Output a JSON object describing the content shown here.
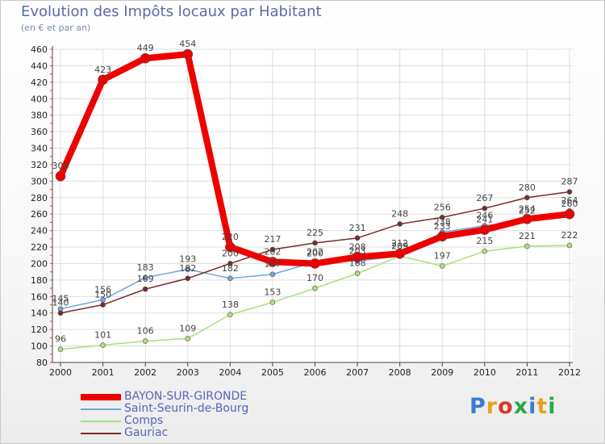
{
  "title": "Evolution des Impôts locaux par Habitant",
  "subtitle": "(en € et par an)",
  "logo": {
    "text": "Proxiti",
    "letter_colors": [
      "#3a7bd5",
      "#e8a020",
      "#d63a2a",
      "#2aa84a",
      "#3a7bd5",
      "#e8a020",
      "#2aa84a"
    ]
  },
  "chart_data": {
    "type": "line",
    "title": "Evolution des Impôts locaux par Habitant",
    "subtitle": "(en € et par an)",
    "xlabel": "",
    "ylabel": "",
    "ylim": [
      80,
      460
    ],
    "yticks": [
      80,
      100,
      120,
      140,
      160,
      180,
      200,
      220,
      240,
      260,
      280,
      300,
      320,
      340,
      360,
      380,
      400,
      420,
      440,
      460
    ],
    "categories": [
      "2000",
      "2001",
      "2002",
      "2003",
      "2004",
      "2005",
      "2006",
      "2007",
      "2008",
      "2009",
      "2010",
      "2011",
      "2012"
    ],
    "grid": true,
    "legend_position": "bottom-left",
    "series": [
      {
        "name": "Comps",
        "color": "#a8e07a",
        "values": [
          96,
          101,
          106,
          109,
          138,
          153,
          170,
          188,
          209,
          197,
          215,
          221,
          222
        ],
        "labels": [
          "96",
          "101",
          "106",
          "109",
          "138",
          "153",
          "170",
          "188",
          "209",
          "197",
          "215",
          "221",
          "222"
        ]
      },
      {
        "name": "Saint-Seurin-de-Bourg",
        "color": "#6fa8dc",
        "values": [
          145,
          156,
          183,
          193,
          182,
          187,
          202,
          203,
          209,
          238,
          246,
          252,
          264
        ],
        "labels": [
          "145",
          "156",
          "183",
          "193",
          "182",
          "187",
          "202",
          "203",
          "209",
          "238",
          "246",
          "252",
          "264"
        ]
      },
      {
        "name": "Gauriac",
        "color": "#7a2a2a",
        "values": [
          140,
          150,
          169,
          182,
          200,
          217,
          225,
          231,
          248,
          256,
          267,
          280,
          287
        ],
        "labels": [
          "140",
          "150",
          "169",
          "182",
          "200",
          "217",
          "225",
          "231",
          "248",
          "256",
          "267",
          "280",
          "287"
        ]
      },
      {
        "name": "BAYON-SUR-GIRONDE",
        "color": "#ee0000",
        "values": [
          306,
          423,
          449,
          454,
          220,
          202,
          200,
          208,
          212,
          233,
          241,
          254,
          260
        ],
        "labels": [
          "306",
          "423",
          "449",
          "454",
          "220",
          "202",
          "200",
          "208",
          "212",
          "233",
          "241",
          "254",
          "260"
        ]
      }
    ],
    "legend": [
      {
        "name": "BAYON-SUR-GIRONDE",
        "color": "#ee0000"
      },
      {
        "name": "Saint-Seurin-de-Bourg",
        "color": "#6fa8dc"
      },
      {
        "name": "Comps",
        "color": "#a8e07a"
      },
      {
        "name": "Gauriac",
        "color": "#7a2a2a"
      }
    ]
  }
}
